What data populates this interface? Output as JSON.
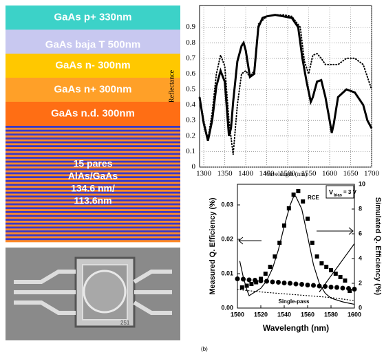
{
  "layer_stack": {
    "layers": [
      {
        "label": "GaAs p+ 330nm",
        "color": "#3cd2c8"
      },
      {
        "label": "GaAs baja T 500nm",
        "color": "#c8c8f0"
      },
      {
        "label": "GaAs n- 300nm",
        "color": "#ffc800"
      },
      {
        "label": "GaAs n+ 300nm",
        "color": "#ffa028"
      },
      {
        "label": "GaAs n.d. 300nm",
        "color": "#ff6e14"
      }
    ],
    "mirror_lines": [
      "15 pares",
      "AlAs/GaAs",
      "134.6 nm/",
      "113.6nm"
    ]
  },
  "photo_label": "251",
  "chart_data": [
    {
      "type": "line",
      "y_label": "Reflectance",
      "x_label": "Wavelength (nm)",
      "xlim": [
        1290,
        1700
      ],
      "ylim": [
        0,
        1.04
      ],
      "xticks": [
        1300,
        1350,
        1400,
        1450,
        1500,
        1550,
        1600,
        1650,
        1700
      ],
      "yticks": [
        0,
        0.1,
        0.2,
        0.3,
        0.4,
        0.5,
        0.6,
        0.7,
        0.8,
        0.9
      ],
      "grid": true,
      "series": [
        {
          "color": "#000000",
          "style": "solid",
          "width": 3,
          "x": [
            1290,
            1300,
            1310,
            1320,
            1330,
            1340,
            1350,
            1360,
            1365,
            1370,
            1380,
            1390,
            1395,
            1400,
            1410,
            1420,
            1430,
            1440,
            1450,
            1470,
            1490,
            1510,
            1525,
            1535,
            1545,
            1555,
            1560,
            1570,
            1580,
            1590,
            1600,
            1605,
            1610,
            1620,
            1640,
            1660,
            1680,
            1690,
            1700
          ],
          "values": [
            0.45,
            0.28,
            0.17,
            0.3,
            0.52,
            0.62,
            0.55,
            0.2,
            0.25,
            0.42,
            0.68,
            0.78,
            0.8,
            0.75,
            0.58,
            0.6,
            0.9,
            0.96,
            0.97,
            0.98,
            0.97,
            0.96,
            0.9,
            0.7,
            0.55,
            0.42,
            0.45,
            0.55,
            0.56,
            0.45,
            0.3,
            0.22,
            0.28,
            0.45,
            0.5,
            0.48,
            0.4,
            0.3,
            0.25
          ]
        },
        {
          "color": "#000000",
          "style": "dotted",
          "width": 2,
          "x": [
            1290,
            1300,
            1310,
            1320,
            1330,
            1340,
            1350,
            1360,
            1370,
            1380,
            1390,
            1400,
            1410,
            1420,
            1430,
            1450,
            1470,
            1490,
            1510,
            1530,
            1540,
            1550,
            1560,
            1570,
            1580,
            1590,
            1600,
            1620,
            1640,
            1660,
            1680,
            1700
          ],
          "values": [
            0.45,
            0.3,
            0.18,
            0.35,
            0.6,
            0.72,
            0.65,
            0.3,
            0.08,
            0.4,
            0.6,
            0.62,
            0.58,
            0.62,
            0.92,
            0.97,
            0.98,
            0.98,
            0.97,
            0.9,
            0.68,
            0.6,
            0.72,
            0.73,
            0.7,
            0.66,
            0.66,
            0.66,
            0.7,
            0.7,
            0.66,
            0.5
          ]
        }
      ]
    },
    {
      "type": "line",
      "x_label": "Wavelength (nm)",
      "y_label": "Measured Q. Efficiency (%)",
      "y2_label": "Simulated Q. Efficiency (%)",
      "xlim": [
        1500,
        1600
      ],
      "ylim": [
        0,
        0.036
      ],
      "y2lim": [
        0,
        10
      ],
      "xticks": [
        1500,
        1520,
        1540,
        1560,
        1580,
        1600
      ],
      "yticks": [
        {
          "value": 0,
          "label": "0.00"
        },
        0.01,
        0.02,
        0.03
      ],
      "y2ticks": [
        0,
        2,
        4,
        6,
        8,
        10
      ],
      "panel_label": "(b)",
      "bias": {
        "symbol": "V",
        "subscript": "bias",
        "text": "= 3 V"
      },
      "series": [
        {
          "color": "#000000",
          "marker": "square",
          "x": [
            1504,
            1508,
            1512,
            1516,
            1520,
            1524,
            1528,
            1532,
            1536,
            1540,
            1544,
            1548,
            1552,
            1556,
            1560,
            1564,
            1568,
            1572,
            1576,
            1580,
            1584,
            1588,
            1592,
            1596
          ],
          "values": [
            0.006,
            0.0065,
            0.007,
            0.0075,
            0.0085,
            0.01,
            0.012,
            0.015,
            0.019,
            0.024,
            0.029,
            0.033,
            0.034,
            0.031,
            0.026,
            0.019,
            0.015,
            0.013,
            0.012,
            0.011,
            0.01,
            0.009,
            0.008,
            0.005
          ]
        },
        {
          "color": "#000000",
          "marker": "circle",
          "x": [
            1500,
            1505,
            1510,
            1515,
            1520,
            1525,
            1530,
            1535,
            1540,
            1545,
            1550,
            1555,
            1560,
            1565,
            1570,
            1575,
            1580,
            1585,
            1590,
            1595,
            1600
          ],
          "values": [
            0.0085,
            0.0084,
            0.0082,
            0.0081,
            0.0079,
            0.0078,
            0.0076,
            0.0075,
            0.0073,
            0.0072,
            0.007,
            0.0069,
            0.0067,
            0.0066,
            0.0064,
            0.0063,
            0.0061,
            0.006,
            0.0058,
            0.0057,
            0.0055
          ]
        },
        {
          "name": "RCE",
          "color": "#000000",
          "style": "solid",
          "axis": "y2",
          "x": [
            1502,
            1505,
            1508,
            1510,
            1520,
            1525,
            1530,
            1535,
            1540,
            1545,
            1548,
            1550,
            1555,
            1560,
            1565,
            1570,
            1575,
            1580,
            1590,
            1600
          ],
          "values": [
            3.8,
            2.5,
            1.5,
            1.0,
            1.6,
            2.2,
            3.2,
            4.7,
            6.6,
            8.3,
            9.0,
            9.0,
            8.0,
            5.8,
            3.5,
            2.0,
            1.2,
            0.8,
            0.5,
            0.3
          ]
        },
        {
          "color": "#000000",
          "style": "solid",
          "axis": "y2",
          "x": [
            1570,
            1580,
            1590,
            1600
          ],
          "values": [
            1.3,
            2.6,
            3.9,
            5.2
          ]
        },
        {
          "name": "Single-pass",
          "color": "#000000",
          "style": "dotted",
          "axis": "y2",
          "x": [
            1500,
            1520,
            1540,
            1560,
            1580,
            1600
          ],
          "values": [
            1.5,
            1.3,
            1.15,
            1.0,
            0.85,
            0.6
          ]
        }
      ]
    }
  ]
}
